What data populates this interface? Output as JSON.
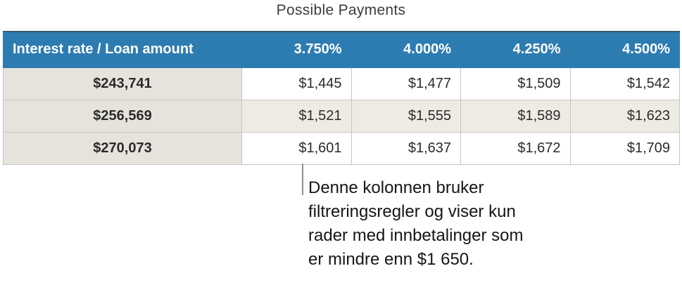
{
  "title": "Possible Payments",
  "table": {
    "header": [
      "Interest rate / Loan amount",
      "3.750%",
      "4.000%",
      "4.250%",
      "4.500%"
    ],
    "rows": [
      {
        "loan": "$243,741",
        "payments": [
          "$1,445",
          "$1,477",
          "$1,509",
          "$1,542"
        ]
      },
      {
        "loan": "$256,569",
        "payments": [
          "$1,521",
          "$1,555",
          "$1,589",
          "$1,623"
        ]
      },
      {
        "loan": "$270,073",
        "payments": [
          "$1,601",
          "$1,637",
          "$1,672",
          "$1,709"
        ]
      }
    ]
  },
  "callout": {
    "lines": [
      "Denne kolonnen bruker",
      "filtreringsregler og viser kun",
      "rader med innbetalinger som",
      "er mindre enn $1 650."
    ],
    "full_text": "Denne kolonnen bruker filtreringsregler og viser kun rader med innbetalinger som er mindre enn $1 650."
  },
  "colors": {
    "header-blue": "#2d7cb1",
    "header-top-edge": "#36596e",
    "rowhead-beige": "#e6e3dd",
    "alt-beige": "#eeebe3",
    "grid-line": "#c8c6c2",
    "leader-gray": "#8f8f8f",
    "title-text": "#3c3c3c"
  }
}
